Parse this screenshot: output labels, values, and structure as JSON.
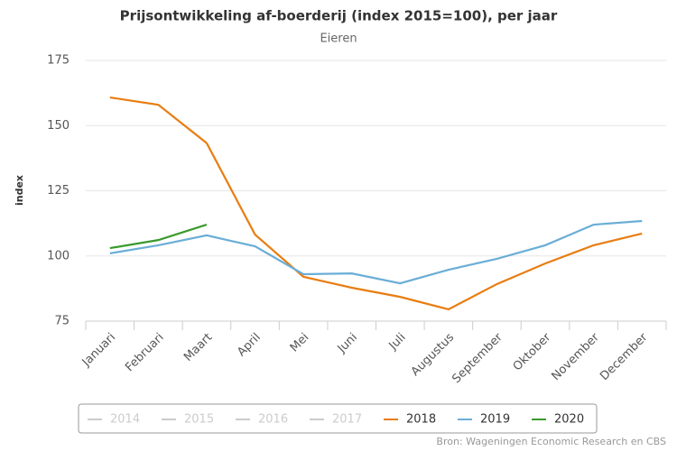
{
  "chart_data": {
    "type": "line",
    "title": "Prijsontwikkeling af-boerderij (index 2015=100), per jaar",
    "subtitle": "Eieren",
    "y_label": "index",
    "source": "Bron: Wageningen Economic Research en CBS",
    "categories": [
      "Januari",
      "Februari",
      "Maart",
      "April",
      "Mei",
      "Juni",
      "Juli",
      "Augustus",
      "September",
      "Oktober",
      "November",
      "December"
    ],
    "series": [
      {
        "name": "2014",
        "color": "#cccccc",
        "visible": false,
        "values": [
          null,
          null,
          null,
          null,
          null,
          null,
          null,
          null,
          null,
          null,
          null,
          null
        ]
      },
      {
        "name": "2015",
        "color": "#cccccc",
        "visible": false,
        "values": [
          null,
          null,
          null,
          null,
          null,
          null,
          null,
          null,
          null,
          null,
          null,
          null
        ]
      },
      {
        "name": "2016",
        "color": "#cccccc",
        "visible": false,
        "values": [
          null,
          null,
          null,
          null,
          null,
          null,
          null,
          null,
          null,
          null,
          null,
          null
        ]
      },
      {
        "name": "2017",
        "color": "#cccccc",
        "visible": false,
        "values": [
          null,
          null,
          null,
          null,
          null,
          null,
          null,
          null,
          null,
          null,
          null,
          null
        ]
      },
      {
        "name": "2018",
        "color": "#e87d10",
        "visible": true,
        "values": [
          160.8,
          158,
          143.3,
          108.2,
          92,
          87.8,
          84.3,
          79.5,
          89.2,
          97.1,
          104.1,
          108.6
        ]
      },
      {
        "name": "2019",
        "color": "#6aaed6",
        "visible": true,
        "values": [
          101,
          104.1,
          107.9,
          103.7,
          93,
          93.3,
          89.5,
          94.7,
          98.9,
          104.1,
          112,
          113.4
        ]
      },
      {
        "name": "2020",
        "color": "#3a9a2c",
        "visible": true,
        "values": [
          103,
          106.1,
          112,
          null,
          null,
          null,
          null,
          null,
          null,
          null,
          null,
          null
        ]
      }
    ],
    "ylim": [
      75,
      175
    ],
    "yticks": [
      75,
      100,
      125,
      150,
      175
    ],
    "grid": true
  }
}
